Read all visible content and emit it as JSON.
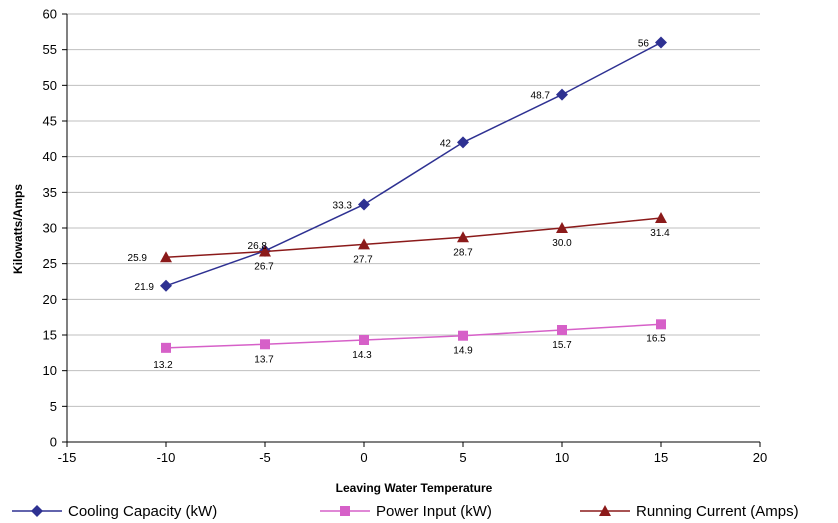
{
  "chart_data": {
    "type": "line",
    "title": "",
    "xlabel": "Leaving Water Temperature",
    "ylabel": "Kilowatts/Amps",
    "xlim": [
      -15,
      20
    ],
    "ylim": [
      0,
      60
    ],
    "x_ticks": [
      -15,
      -10,
      -5,
      0,
      5,
      10,
      15,
      20
    ],
    "y_ticks": [
      0,
      5,
      10,
      15,
      20,
      25,
      30,
      35,
      40,
      45,
      50,
      55,
      60
    ],
    "grid": true,
    "legend_position": "bottom",
    "x": [
      -10,
      -5,
      0,
      5,
      10,
      15
    ],
    "series": [
      {
        "name": "Cooling Capacity (kW)",
        "values": [
          21.9,
          26.8,
          33.3,
          42,
          48.7,
          56
        ],
        "labels": [
          "21.9",
          "26.8",
          "33.3",
          "42",
          "48.7",
          "56"
        ],
        "color": "#2e3192",
        "marker": "diamond"
      },
      {
        "name": "Power Input (kW)",
        "values": [
          13.2,
          13.7,
          14.3,
          14.9,
          15.7,
          16.5
        ],
        "labels": [
          "13.2",
          "13.7",
          "14.3",
          "14.9",
          "15.7",
          "16.5"
        ],
        "color": "#d660c8",
        "marker": "square"
      },
      {
        "name": "Running Current (Amps)",
        "values": [
          25.9,
          26.7,
          27.7,
          28.7,
          30.0,
          31.4
        ],
        "labels": [
          "25.9",
          "26.7",
          "27.7",
          "28.7",
          "30.0",
          "31.4"
        ],
        "color": "#8b1a1a",
        "marker": "triangle"
      }
    ]
  }
}
